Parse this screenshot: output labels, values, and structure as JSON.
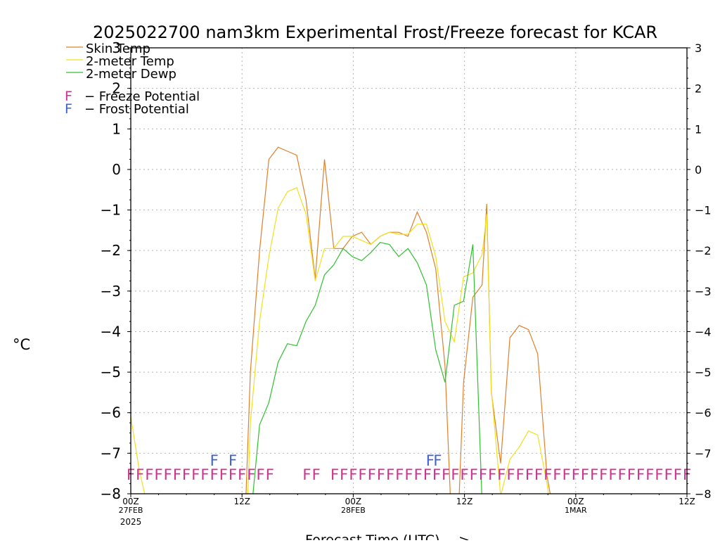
{
  "chart_data": {
    "type": "line",
    "title": "2025022700 nam3km Experimental Frost/Freeze forecast for KCAR",
    "xlabel": "Forecast Time (UTC) --->",
    "ylabel": "°C",
    "ylim": [
      -8,
      3
    ],
    "yticks": [
      3,
      2,
      1,
      0,
      -1,
      -2,
      -3,
      -4,
      -5,
      -6,
      -7,
      -8
    ],
    "xlim_hours": [
      0,
      60
    ],
    "xticks": [
      {
        "hour": 0,
        "l1": "00Z",
        "l2": "27FEB",
        "l3": "2025"
      },
      {
        "hour": 12,
        "l1": "12Z",
        "l2": "",
        "l3": ""
      },
      {
        "hour": 24,
        "l1": "00Z",
        "l2": "28FEB",
        "l3": ""
      },
      {
        "hour": 36,
        "l1": "12Z",
        "l2": "",
        "l3": ""
      },
      {
        "hour": 48,
        "l1": "00Z",
        "l2": "1MAR",
        "l3": ""
      },
      {
        "hour": 60,
        "l1": "12Z",
        "l2": "",
        "l3": ""
      }
    ],
    "grid": true,
    "legend_position": "top-left",
    "series": [
      {
        "name": "Skin Temp",
        "color": "#e0802a",
        "points": [
          [
            12.4,
            -8.2
          ],
          [
            12.9,
            -5
          ],
          [
            13.9,
            -2
          ],
          [
            14.9,
            0.25
          ],
          [
            15.9,
            0.55
          ],
          [
            16.9,
            0.45
          ],
          [
            17.9,
            0.35
          ],
          [
            18.9,
            -0.75
          ],
          [
            19.9,
            -2.7
          ],
          [
            20.9,
            0.25
          ],
          [
            21.9,
            -1.95
          ],
          [
            22.9,
            -1.95
          ],
          [
            23.9,
            -1.65
          ],
          [
            24.9,
            -1.55
          ],
          [
            25.9,
            -1.85
          ],
          [
            26.9,
            -1.65
          ],
          [
            27.9,
            -1.55
          ],
          [
            28.9,
            -1.55
          ],
          [
            29.9,
            -1.65
          ],
          [
            30.9,
            -1.05
          ],
          [
            31.9,
            -1.55
          ],
          [
            32.9,
            -2.45
          ],
          [
            33.9,
            -4.85
          ],
          [
            34.5,
            -8.2
          ]
        ],
        "points2": [
          [
            35.4,
            -8.2
          ],
          [
            35.9,
            -5.25
          ],
          [
            36.9,
            -3.15
          ],
          [
            37.9,
            -2.85
          ],
          [
            38.4,
            -0.85
          ],
          [
            38.9,
            -5.5
          ],
          [
            39.9,
            -7.25
          ],
          [
            40.9,
            -4.15
          ],
          [
            41.9,
            -3.85
          ],
          [
            42.9,
            -3.95
          ],
          [
            43.9,
            -4.55
          ],
          [
            44.9,
            -7.55
          ],
          [
            45.4,
            -8.2
          ]
        ]
      },
      {
        "name": "2-meter Temp",
        "color": "#f0e020",
        "points": [
          [
            0,
            -6.1
          ],
          [
            0.9,
            -7.4
          ],
          [
            1.7,
            -8.2
          ]
        ],
        "points2": [
          [
            12.6,
            -8.2
          ],
          [
            12.9,
            -6.25
          ],
          [
            13.9,
            -3.75
          ],
          [
            14.9,
            -2.15
          ],
          [
            15.9,
            -0.95
          ],
          [
            16.9,
            -0.55
          ],
          [
            17.9,
            -0.45
          ],
          [
            18.9,
            -1.1
          ],
          [
            19.9,
            -2.75
          ],
          [
            20.9,
            -1.95
          ],
          [
            21.9,
            -1.95
          ],
          [
            22.9,
            -1.65
          ],
          [
            23.9,
            -1.65
          ],
          [
            24.9,
            -1.75
          ],
          [
            25.9,
            -1.85
          ],
          [
            26.9,
            -1.65
          ],
          [
            27.9,
            -1.55
          ],
          [
            28.9,
            -1.6
          ],
          [
            29.9,
            -1.6
          ],
          [
            30.9,
            -1.35
          ],
          [
            31.9,
            -1.35
          ],
          [
            32.9,
            -2.15
          ],
          [
            33.9,
            -3.75
          ],
          [
            34.9,
            -4.25
          ],
          [
            35.9,
            -2.65
          ],
          [
            36.9,
            -2.55
          ],
          [
            37.9,
            -2.1
          ],
          [
            38.4,
            -1.1
          ],
          [
            38.9,
            -5.45
          ],
          [
            39.9,
            -8.05
          ],
          [
            40.9,
            -7.15
          ],
          [
            41.9,
            -6.85
          ],
          [
            42.9,
            -6.45
          ],
          [
            43.9,
            -6.55
          ],
          [
            44.9,
            -7.75
          ],
          [
            45.2,
            -8.2
          ]
        ]
      },
      {
        "name": "2-meter Dewp",
        "color": "#30c030",
        "points": [
          [
            13.1,
            -8.2
          ],
          [
            13.9,
            -6.3
          ],
          [
            14.9,
            -5.75
          ],
          [
            15.9,
            -4.75
          ],
          [
            16.9,
            -4.3
          ],
          [
            17.9,
            -4.35
          ],
          [
            18.9,
            -3.75
          ],
          [
            19.9,
            -3.35
          ],
          [
            20.9,
            -2.6
          ],
          [
            21.9,
            -2.35
          ],
          [
            22.9,
            -1.95
          ],
          [
            23.9,
            -2.15
          ],
          [
            24.9,
            -2.25
          ],
          [
            25.9,
            -2.05
          ],
          [
            26.9,
            -1.8
          ],
          [
            27.9,
            -1.85
          ],
          [
            28.9,
            -2.15
          ],
          [
            29.9,
            -1.95
          ],
          [
            30.9,
            -2.3
          ],
          [
            31.9,
            -2.85
          ],
          [
            32.9,
            -4.45
          ],
          [
            33.9,
            -5.25
          ],
          [
            34.9,
            -3.35
          ],
          [
            35.9,
            -3.25
          ],
          [
            36.9,
            -1.85
          ],
          [
            37.9,
            -8.2
          ]
        ]
      }
    ],
    "freeze_marks": {
      "name": "F - Freeze Potential",
      "color": "#d03090",
      "y": -7.5,
      "hours": [
        0,
        1,
        2,
        3,
        4,
        5,
        6,
        7,
        8,
        9,
        10,
        11,
        12,
        13,
        14,
        15,
        19,
        20,
        22,
        23,
        24,
        25,
        26,
        27,
        28,
        29,
        30,
        31,
        32,
        33,
        34,
        35,
        36,
        37,
        38,
        39,
        40,
        41,
        42,
        43,
        44,
        45,
        46,
        47,
        48,
        49,
        50,
        51,
        52,
        53,
        54,
        55,
        56,
        57,
        58,
        59,
        60
      ]
    },
    "frost_marks": {
      "name": "F - Frost Potential",
      "color": "#4060d0",
      "y": -7.15,
      "hours": [
        9,
        11,
        32.3,
        33.1
      ]
    }
  }
}
